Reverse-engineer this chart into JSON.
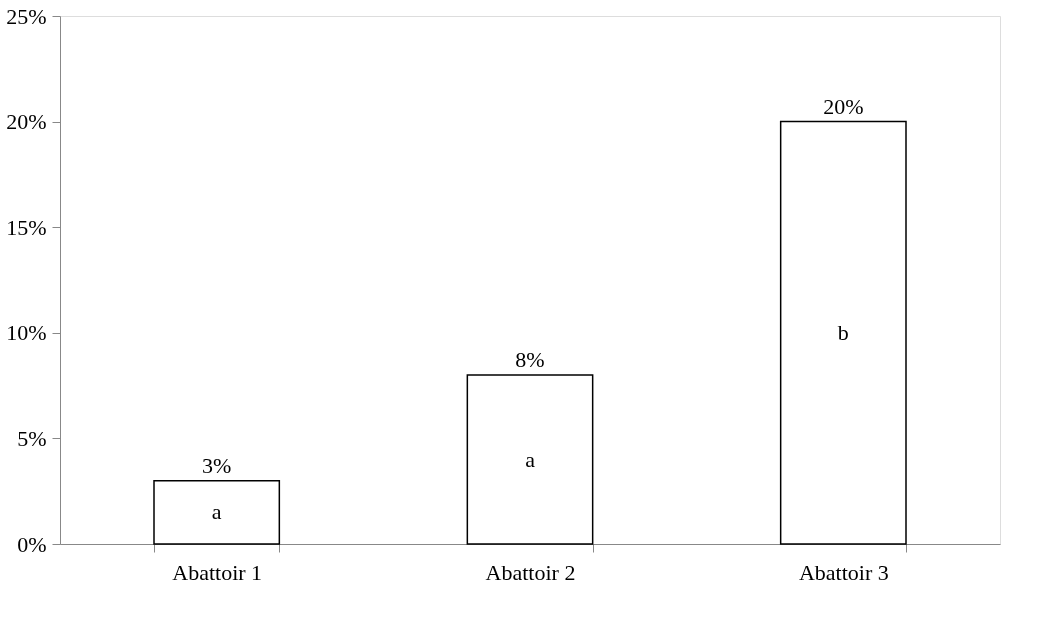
{
  "chart_data": {
    "type": "bar",
    "categories": [
      "Abattoir 1",
      "Abattoir 2",
      "Abattoir 3"
    ],
    "values": [
      3,
      8,
      20
    ],
    "color": "#ffffff",
    "value_labels": [
      "3%",
      "8%",
      "20%"
    ],
    "ylim": [
      0,
      25
    ],
    "yticks": [
      {
        "value": 0,
        "label": "0%"
      },
      {
        "value": 5,
        "label": "5%"
      },
      {
        "value": 10,
        "label": "10%"
      },
      {
        "value": 15,
        "label": "15%"
      },
      {
        "value": 20,
        "label": "20%"
      },
      {
        "value": 25,
        "label": "25%"
      }
    ],
    "annotations": [
      "a",
      "a",
      "b"
    ]
  }
}
